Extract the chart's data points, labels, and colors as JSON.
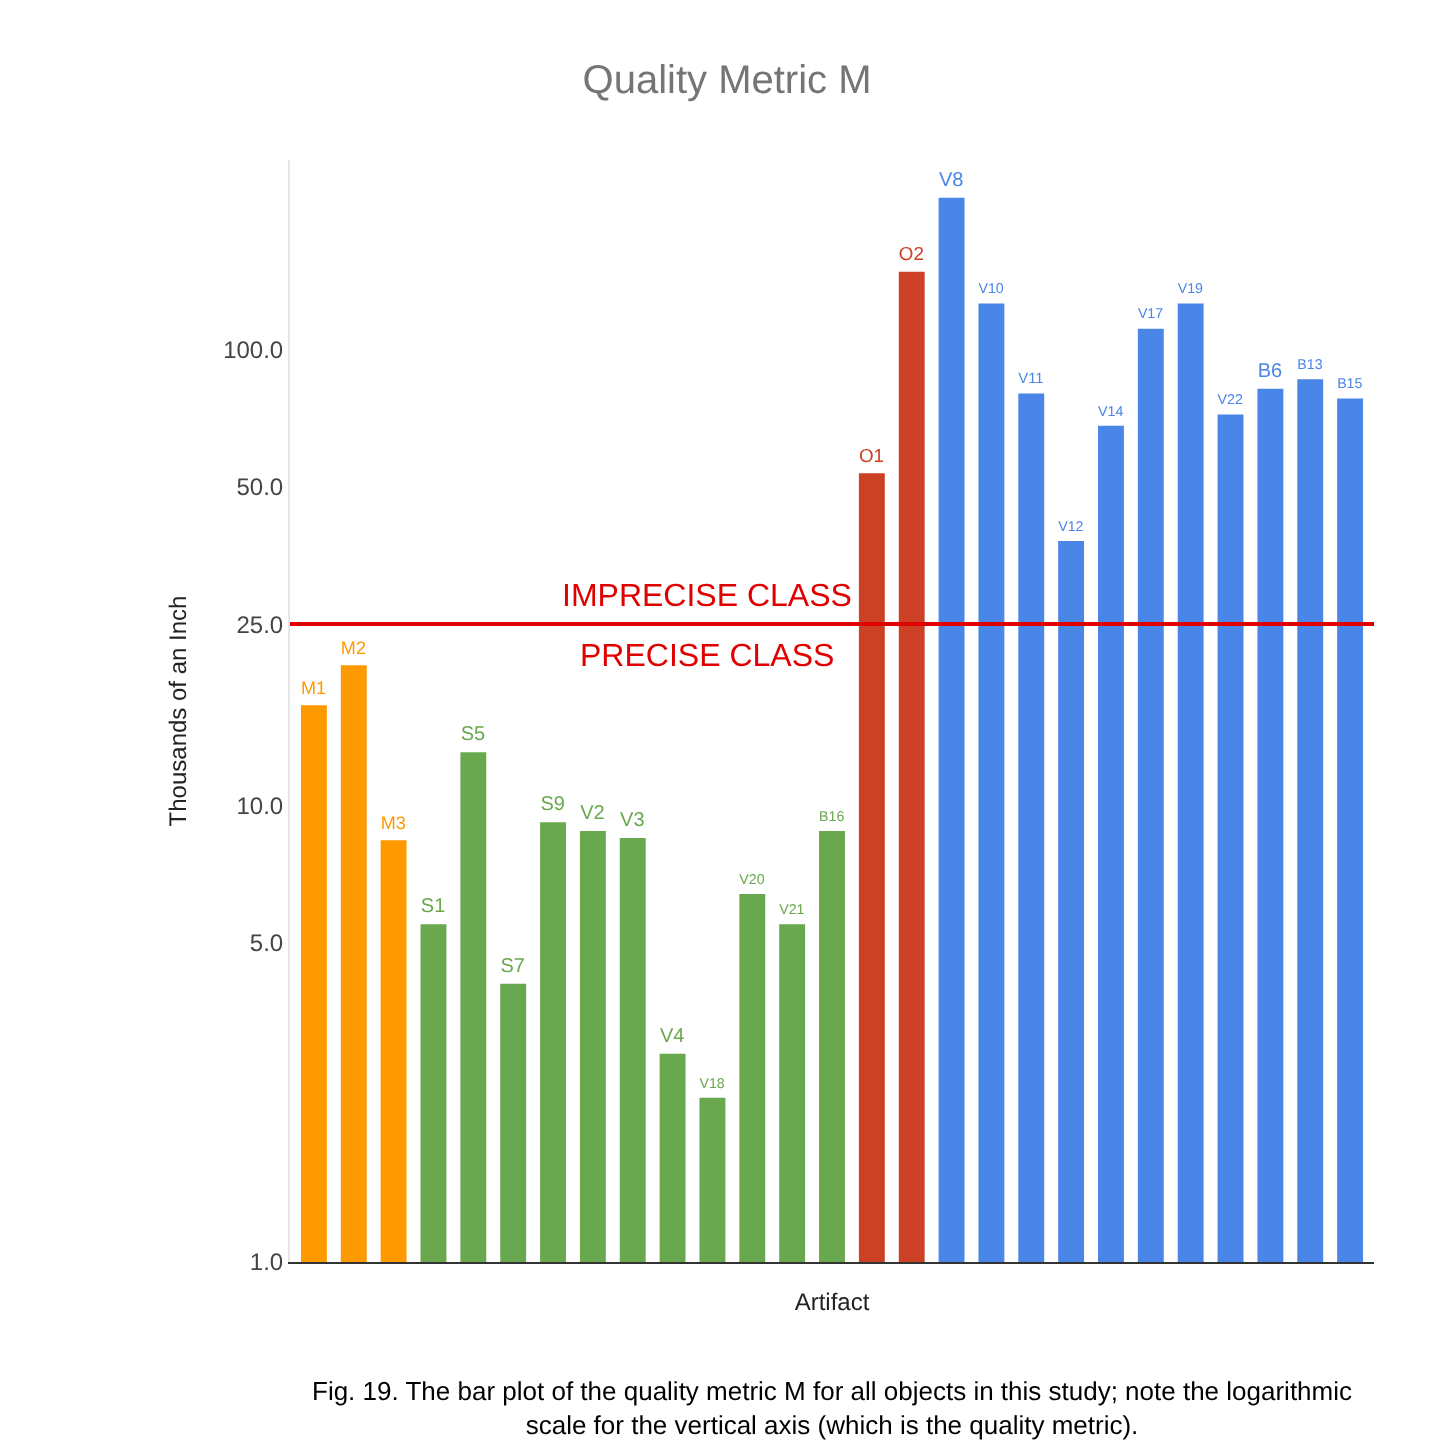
{
  "chart_data": {
    "type": "bar",
    "title": "Quality Metric M",
    "xlabel": "Artifact",
    "ylabel": "Thousands of an Inch",
    "categories": [
      "M1",
      "M2",
      "M3",
      "S1",
      "S5",
      "S7",
      "S9",
      "V2",
      "V3",
      "V4",
      "V18",
      "V20",
      "V21",
      "B16",
      "O1",
      "O2",
      "V8",
      "V10",
      "V11",
      "V12",
      "V14",
      "V17",
      "V19",
      "V22",
      "B6",
      "B13",
      "B15"
    ],
    "values": [
      16.6,
      20.3,
      8.4,
      5.5,
      13.1,
      4.07,
      9.2,
      8.8,
      8.5,
      2.86,
      2.29,
      6.4,
      5.5,
      8.8,
      53.5,
      148,
      215,
      126,
      80,
      38,
      68,
      111,
      126,
      72,
      82,
      86,
      78
    ],
    "colors": [
      "#ff9900",
      "#ff9900",
      "#ff9900",
      "#6aa84f",
      "#6aa84f",
      "#6aa84f",
      "#6aa84f",
      "#6aa84f",
      "#6aa84f",
      "#6aa84f",
      "#6aa84f",
      "#6aa84f",
      "#6aa84f",
      "#6aa84f",
      "#cc4125",
      "#cc4125",
      "#4a86e8",
      "#4a86e8",
      "#4a86e8",
      "#4a86e8",
      "#4a86e8",
      "#4a86e8",
      "#4a86e8",
      "#4a86e8",
      "#4a86e8",
      "#4a86e8",
      "#4a86e8"
    ],
    "log": "y",
    "ylim": [
      1,
      260
    ],
    "yticks": [
      {
        "value": 1,
        "label": "1.0"
      },
      {
        "value": 5,
        "label": "5.0"
      },
      {
        "value": 10,
        "label": "10.0"
      },
      {
        "value": 25,
        "label": "25.0"
      },
      {
        "value": 50,
        "label": "50.0"
      },
      {
        "value": 100,
        "label": "100.0"
      }
    ],
    "tick_labels": "y",
    "legend": false,
    "ref_lines": [
      {
        "axis": "y",
        "value": 25,
        "color": "#e00000",
        "line_style": "solid"
      }
    ],
    "annotations": [
      "IMPRECISE CLASS",
      "PRECISE CLASS",
      "Fig. 19. The bar plot of the quality metric M for all objects in this study; note the logarithmic\nscale for the vertical axis (which is the quality metric)."
    ]
  }
}
